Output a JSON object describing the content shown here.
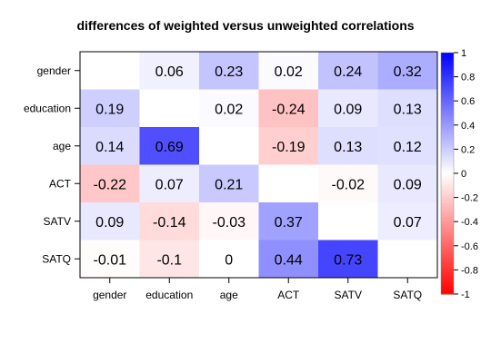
{
  "chart_data": {
    "type": "heatmap",
    "title": "differences of weighted versus unweighted correlations",
    "x_labels": [
      "gender",
      "education",
      "age",
      "ACT",
      "SATV",
      "SATQ"
    ],
    "y_labels": [
      "gender",
      "education",
      "age",
      "ACT",
      "SATV",
      "SATQ"
    ],
    "values": [
      [
        null,
        0.06,
        0.23,
        0.02,
        0.24,
        0.32
      ],
      [
        0.19,
        null,
        0.02,
        -0.24,
        0.09,
        0.13
      ],
      [
        0.14,
        0.69,
        null,
        -0.19,
        0.13,
        0.12
      ],
      [
        -0.22,
        0.07,
        0.21,
        null,
        -0.02,
        0.09
      ],
      [
        0.09,
        -0.14,
        -0.03,
        0.37,
        null,
        0.07
      ],
      [
        -0.01,
        -0.1,
        0,
        0.44,
        0.73,
        null
      ]
    ],
    "color_scale": {
      "min": -1,
      "max": 1,
      "low_color": "#ff0000",
      "mid_color": "#ffffff",
      "high_color": "#0000ff"
    },
    "colorbar_ticks": [
      1,
      0.8,
      0.6,
      0.4,
      0.2,
      0,
      -0.2,
      -0.4,
      -0.6,
      -0.8,
      -1
    ]
  }
}
